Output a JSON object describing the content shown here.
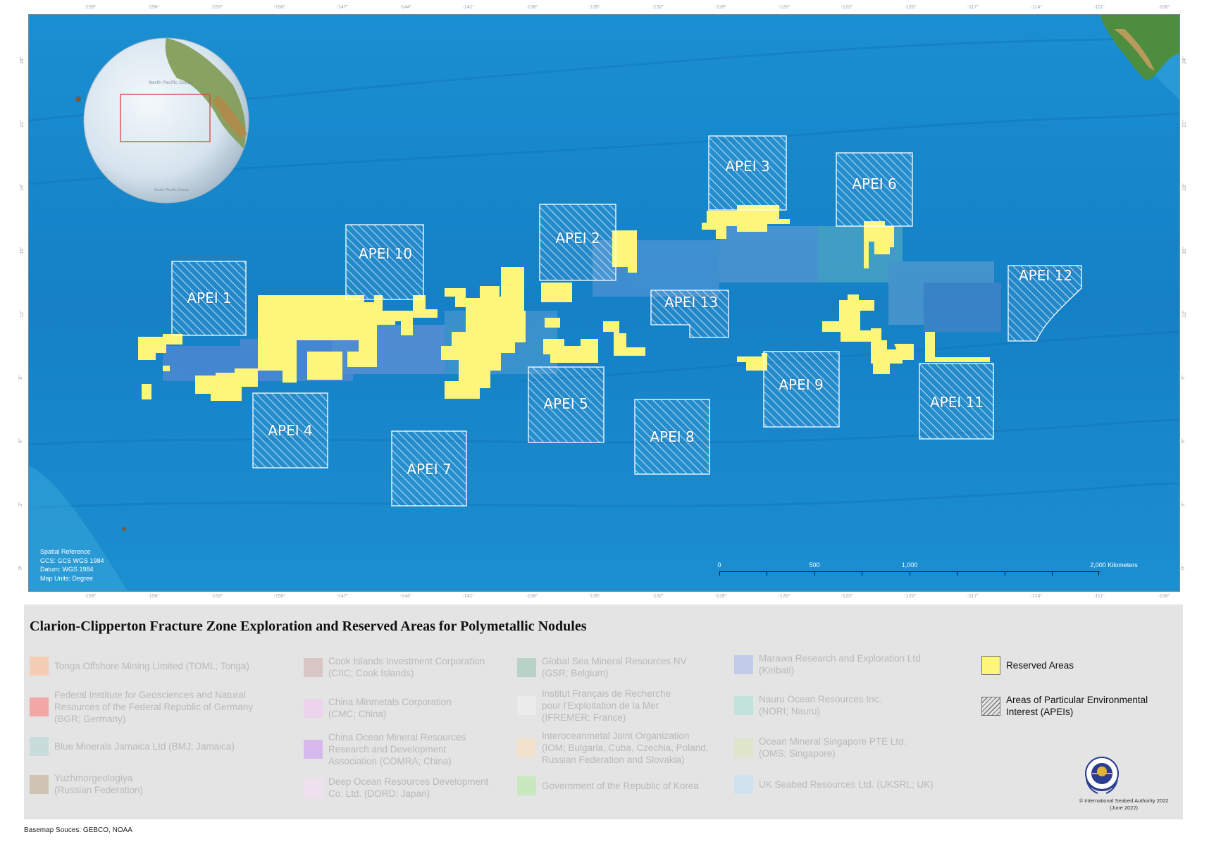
{
  "map": {
    "title": "Clarion-Clipperton Fracture Zone Exploration and Reserved Areas for Polymetallic Nodules",
    "top_ticks": [
      "-159°",
      "-156°",
      "-153°",
      "-150°",
      "-147°",
      "-144°",
      "-141°",
      "-138°",
      "-135°",
      "-132°",
      "-129°",
      "-126°",
      "-123°",
      "-120°",
      "-117°",
      "-114°",
      "-111°",
      "-108°"
    ],
    "bottom_ticks": [
      "-159°",
      "-156°",
      "-153°",
      "-150°",
      "-147°",
      "-144°",
      "-141°",
      "-138°",
      "-135°",
      "-132°",
      "-129°",
      "-126°",
      "-123°",
      "-120°",
      "-117°",
      "-114°",
      "-111°",
      "-108°"
    ],
    "side_ticks": [
      "24°",
      "21°",
      "18°",
      "15°",
      "12°",
      "9°",
      "6°",
      "3°",
      "0°"
    ],
    "apei_labels": [
      "APEI 1",
      "APEI 2",
      "APEI 3",
      "APEI 4",
      "APEI 5",
      "APEI 6",
      "APEI 7",
      "APEI 8",
      "APEI 9",
      "APEI 10",
      "APEI 11",
      "APEI 12",
      "APEI 13"
    ],
    "inset_globe": {
      "label_north": "North Pacific Ocean",
      "label_south": "South Pacific Ocean"
    },
    "spatial_reference": [
      "Spatial Reference",
      "GCS: GCS WGS 1984",
      "Datum: WGS 1984",
      "Map Units: Degree"
    ],
    "scale_bar": {
      "labels": [
        "0",
        "500",
        "1,000",
        "2,000 Kilometers"
      ]
    },
    "colors": {
      "ocean": "#1487cc",
      "reserved": "#fdf67b",
      "apei_hatch": "#ffffff",
      "inset_box": "#e04040"
    }
  },
  "legend": {
    "columns": [
      {
        "items": [
          {
            "label": "Tonga Offshore Mining Limited (TOML; Tonga)",
            "color": "#f5cdb5"
          },
          {
            "label": "Federal Institute for Geosciences and Natural\nResources of the Federal Republic of Germany\n(BGR; Germany)",
            "color": "#f2a6a6"
          },
          {
            "label": "Blue Minerals Jamaica Ltd (BMJ; Jamaica)",
            "color": "#c9dcdc"
          },
          {
            "label": "Yuzhmorgeologiya\n(Russian Federation)",
            "color": "#cfc4b4"
          }
        ]
      },
      {
        "items": [
          {
            "label": "Cook Islands Investment Corporation\n(CIIC; Cook Islands)",
            "color": "#d8c6c6"
          },
          {
            "label": "China Minmetals Corporation\n(CMC; China)",
            "color": "#ecd4ec"
          },
          {
            "label": "China Ocean Mineral Resources\nResearch and Development\nAssociation (COMRA; China)",
            "color": "#d7b8ec"
          },
          {
            "label": "Deep Ocean Resources Development\nCo. Ltd. (DORD; Japan)",
            "color": "#efe0ef"
          }
        ]
      },
      {
        "items": [
          {
            "label": "Global Sea Mineral Resources NV\n(GSR; Belgium)",
            "color": "#b9d2c8"
          },
          {
            "label": "Institut Français de Recherche\npour l'Exploitation de la Mer\n(IFREMER; France)",
            "color": "#ececec"
          },
          {
            "label": "Interoceanmetal Joint Organization\n(IOM; Bulgaria, Cuba, Czechia, Poland,\nRussian Federation and Slovakia)",
            "color": "#f2e2cc"
          },
          {
            "label": "Government of the Republic of Korea",
            "color": "#c8e8c0"
          }
        ]
      },
      {
        "items": [
          {
            "label": "Marawa Research and Exploration Ltd\n(Kiribati)",
            "color": "#c2cce8"
          },
          {
            "label": "Nauru Ocean Resources Inc.\n(NORI; Nauru)",
            "color": "#c0e4dc"
          },
          {
            "label": "Ocean Mineral Singapore PTE Ltd.\n(OMS; Singapore)",
            "color": "#e0e6cc"
          },
          {
            "label": "UK Seabed Resources Ltd. (UKSRL; UK)",
            "color": "#cfe2ee"
          }
        ]
      }
    ],
    "special": {
      "reserved_label": "Reserved Areas",
      "apei_label": "Areas of Particular Environmental\nInterest (APEIs)"
    }
  },
  "copyright": "© International Seabed Authority 2022\n(June 2022)",
  "basemap_sources": "Basemap Souces: GEBCO, NOAA"
}
